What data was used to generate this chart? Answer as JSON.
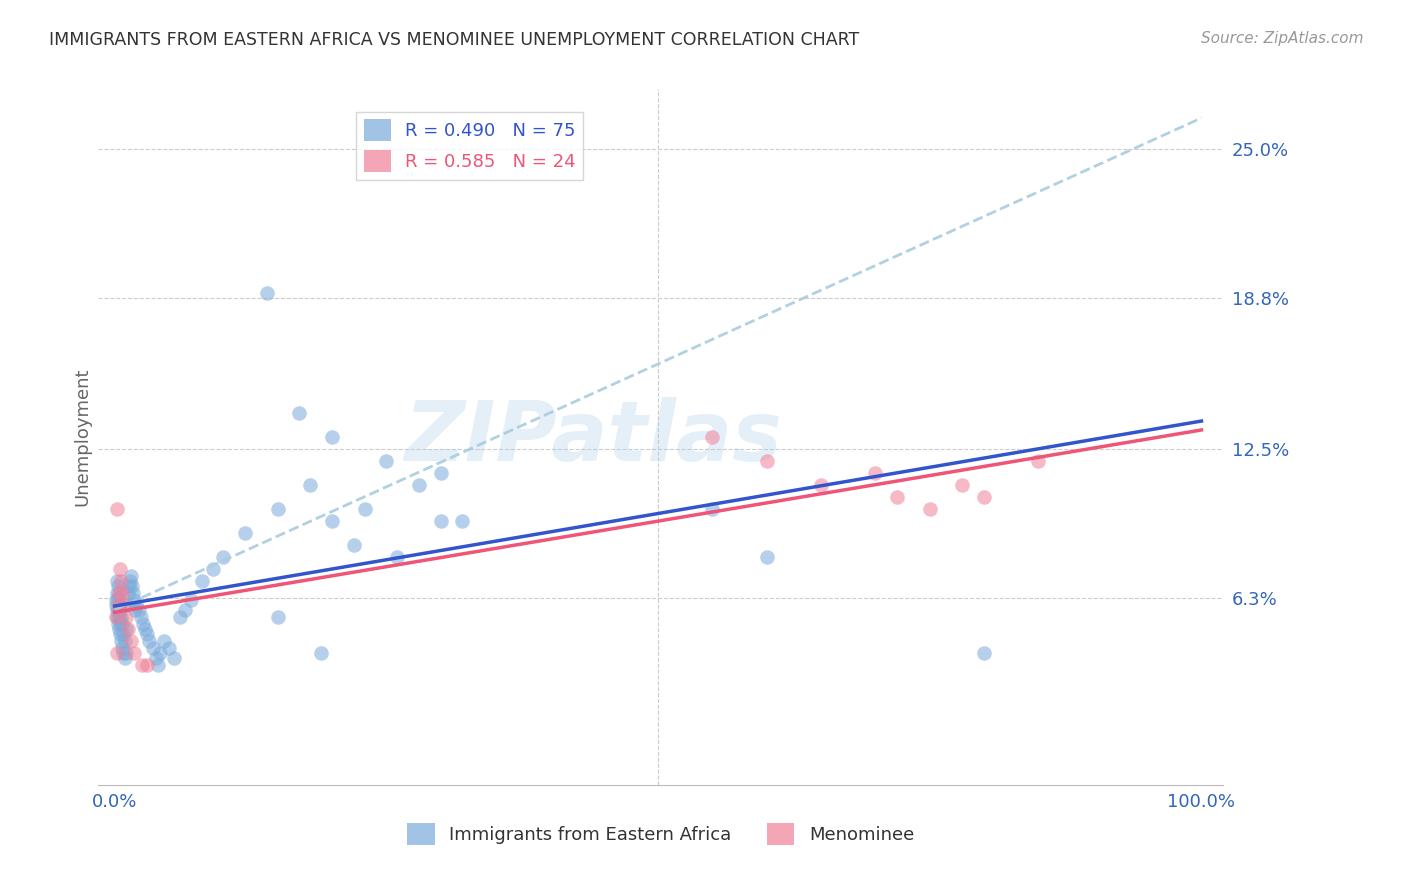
{
  "title": "IMMIGRANTS FROM EASTERN AFRICA VS MENOMINEE UNEMPLOYMENT CORRELATION CHART",
  "source": "Source: ZipAtlas.com",
  "ylabel": "Unemployment",
  "blue_R": 0.49,
  "blue_N": 75,
  "pink_R": 0.585,
  "pink_N": 24,
  "blue_color": "#7AABDB",
  "pink_color": "#F08098",
  "trend_blue_color": "#3355CC",
  "trend_pink_color": "#EE5577",
  "dashed_blue_color": "#AACCDD",
  "grid_color": "#CCCCCC",
  "title_color": "#333333",
  "axis_label_color": "#3366BB",
  "watermark_text": "ZIPatlas",
  "watermark_color": "#AACCE8",
  "ytick_vals": [
    0.063,
    0.125,
    0.188,
    0.25
  ],
  "ytick_labels": [
    "6.3%",
    "12.5%",
    "18.8%",
    "25.0%"
  ],
  "xtick_vals": [
    0.0,
    0.25,
    0.5,
    0.75,
    1.0
  ],
  "xtick_labels": [
    "0.0%",
    "",
    "",
    "",
    "100.0%"
  ],
  "xlim": [
    -0.015,
    1.02
  ],
  "ylim": [
    -0.015,
    0.275
  ],
  "blue_x": [
    0.001,
    0.001,
    0.002,
    0.002,
    0.002,
    0.002,
    0.003,
    0.003,
    0.003,
    0.003,
    0.004,
    0.004,
    0.004,
    0.005,
    0.005,
    0.005,
    0.006,
    0.006,
    0.007,
    0.007,
    0.008,
    0.008,
    0.009,
    0.009,
    0.01,
    0.01,
    0.011,
    0.012,
    0.013,
    0.014,
    0.015,
    0.016,
    0.017,
    0.018,
    0.019,
    0.02,
    0.022,
    0.024,
    0.026,
    0.028,
    0.03,
    0.032,
    0.035,
    0.038,
    0.04,
    0.042,
    0.045,
    0.05,
    0.055,
    0.06,
    0.065,
    0.07,
    0.08,
    0.09,
    0.1,
    0.12,
    0.15,
    0.18,
    0.2,
    0.22,
    0.25,
    0.28,
    0.3,
    0.32,
    0.2,
    0.17,
    0.14,
    0.23,
    0.26,
    0.19,
    0.55,
    0.6,
    0.8,
    0.3,
    0.15
  ],
  "blue_y": [
    0.06,
    0.062,
    0.055,
    0.058,
    0.065,
    0.07,
    0.052,
    0.058,
    0.063,
    0.068,
    0.05,
    0.055,
    0.06,
    0.048,
    0.053,
    0.058,
    0.045,
    0.055,
    0.042,
    0.052,
    0.04,
    0.048,
    0.038,
    0.045,
    0.04,
    0.05,
    0.06,
    0.065,
    0.068,
    0.07,
    0.072,
    0.068,
    0.065,
    0.062,
    0.058,
    0.06,
    0.058,
    0.055,
    0.052,
    0.05,
    0.048,
    0.045,
    0.042,
    0.038,
    0.035,
    0.04,
    0.045,
    0.042,
    0.038,
    0.055,
    0.058,
    0.062,
    0.07,
    0.075,
    0.08,
    0.09,
    0.1,
    0.11,
    0.095,
    0.085,
    0.12,
    0.11,
    0.115,
    0.095,
    0.13,
    0.14,
    0.19,
    0.1,
    0.08,
    0.04,
    0.1,
    0.08,
    0.04,
    0.095,
    0.055
  ],
  "pink_x": [
    0.001,
    0.002,
    0.003,
    0.004,
    0.005,
    0.006,
    0.007,
    0.008,
    0.01,
    0.012,
    0.015,
    0.018,
    0.025,
    0.03,
    0.55,
    0.6,
    0.65,
    0.7,
    0.72,
    0.75,
    0.78,
    0.8,
    0.85,
    0.002
  ],
  "pink_y": [
    0.055,
    0.1,
    0.06,
    0.065,
    0.075,
    0.07,
    0.065,
    0.06,
    0.055,
    0.05,
    0.045,
    0.04,
    0.035,
    0.035,
    0.13,
    0.12,
    0.11,
    0.115,
    0.105,
    0.1,
    0.11,
    0.105,
    0.12,
    0.04
  ],
  "dashed_slope": 0.205,
  "dashed_intercept": 0.058
}
